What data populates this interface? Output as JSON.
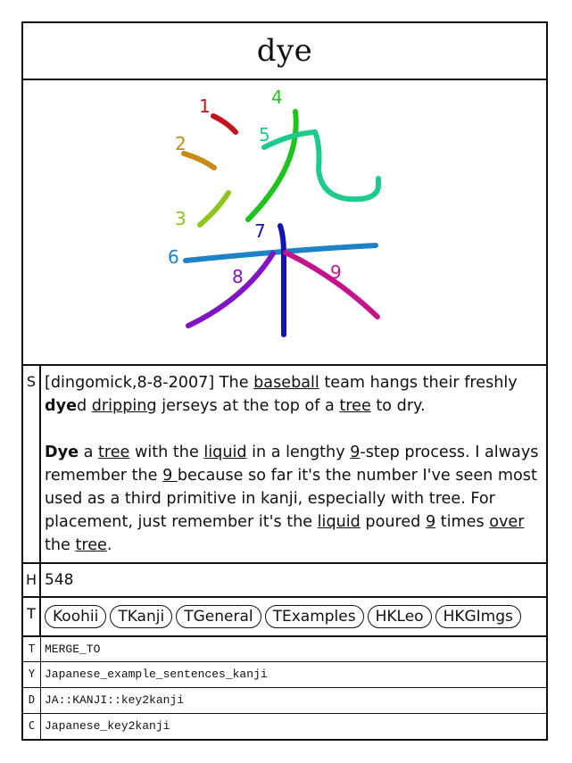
{
  "keyword": "dye",
  "kanji": {
    "character": "染",
    "strokes": [
      {
        "number": "1",
        "color": "#c0141e"
      },
      {
        "number": "2",
        "color": "#c78a14"
      },
      {
        "number": "3",
        "color": "#8cc61e"
      },
      {
        "number": "4",
        "color": "#1ec31e"
      },
      {
        "number": "5",
        "color": "#1ecb8a"
      },
      {
        "number": "6",
        "color": "#1e82c6"
      },
      {
        "number": "7",
        "color": "#1414b4"
      },
      {
        "number": "8",
        "color": "#8214c3"
      },
      {
        "number": "9",
        "color": "#c3148c"
      }
    ]
  },
  "story": {
    "label": "S",
    "para1": {
      "prefix": "[dingomick,8-8-2007] The ",
      "w1": "baseball",
      "t1": " team hangs their freshly ",
      "bold": "dye",
      "t2": "d ",
      "w2": "dripping",
      "t3": " jerseys at the top of a ",
      "w3": "tree",
      "t4": " to dry."
    },
    "para2": {
      "bold": "Dye",
      "t1": " a ",
      "w1": "tree",
      "t2": " with the ",
      "w2": "liquid",
      "t3": " in a lengthy ",
      "w3": "9",
      "t4": "-step process. I always remember the ",
      "w4": "9 ",
      "t5": "because so far it's the number I've seen most used as a third primitive in kanji, especially with tree. For placement, just remember it's the ",
      "w5": "liquid",
      "t6": " poured ",
      "w6": "9",
      "t7": " times ",
      "w7": "over",
      "t8": " the ",
      "w8": "tree",
      "t9": "."
    }
  },
  "heisig": {
    "label": "H",
    "value": "548"
  },
  "tags": {
    "label": "T",
    "items": [
      "Koohii",
      "TKanji",
      "TGeneral",
      "TExamples",
      "HKLeo",
      "HKGImgs"
    ]
  },
  "meta": [
    {
      "label": "T",
      "value": "MERGE_TO"
    },
    {
      "label": "Y",
      "value": "Japanese_example_sentences_kanji"
    },
    {
      "label": "D",
      "value": "JA::KANJI::key2kanji"
    },
    {
      "label": "C",
      "value": "Japanese_key2kanji"
    }
  ]
}
